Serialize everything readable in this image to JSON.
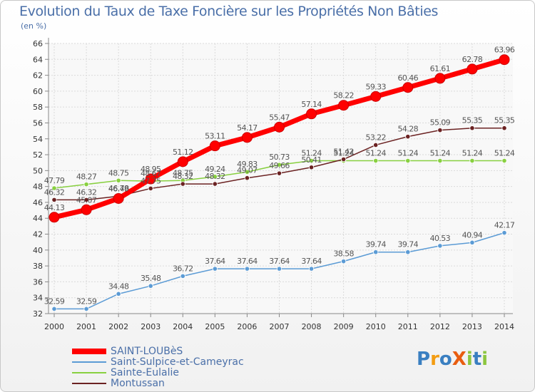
{
  "header": {
    "title": "Evolution du Taux de Taxe Foncière sur les Propriétés Non Bâties",
    "unit": "(en %)"
  },
  "logo": {
    "text": "ProXiti",
    "letter_colors": [
      "#3a7fc1",
      "#f39c12",
      "#3a7fc1",
      "#e85d10",
      "#8cc63f",
      "#3a7fc1",
      "#8cc63f"
    ]
  },
  "chart_data": {
    "type": "line",
    "title": "Evolution du Taux de Taxe Foncière sur les Propriétés Non Bâties",
    "ylabel": "(en %)",
    "xlabel": "",
    "ylim": [
      32,
      66
    ],
    "y_ticks": [
      32,
      34,
      36,
      38,
      40,
      42,
      44,
      46,
      48,
      50,
      52,
      54,
      56,
      58,
      60,
      62,
      64,
      66
    ],
    "grid": true,
    "legend_position": "bottom-left",
    "x": [
      "2000",
      "2001",
      "2002",
      "2003",
      "2004",
      "2005",
      "2006",
      "2007",
      "2008",
      "2009",
      "2010",
      "2011",
      "2012",
      "2013",
      "2014"
    ],
    "series": [
      {
        "name": "SAINT-LOUBèS",
        "color": "#ff0000",
        "values": [
          44.13,
          45.07,
          46.49,
          48.95,
          51.12,
          53.11,
          54.17,
          55.47,
          57.14,
          58.22,
          59.33,
          60.46,
          61.61,
          62.78,
          63.96
        ],
        "labels": [
          "44.13",
          "45.07",
          "46.49",
          "48.95",
          "51.12",
          "53.11",
          "54.17",
          "55.47",
          "57.14",
          "58.22",
          "59.33",
          "60.46",
          "61.61",
          "62.78",
          "63.96"
        ]
      },
      {
        "name": "Saint-Sulpice-et-Cameyrac",
        "color": "#5b9bd5",
        "values": [
          32.59,
          32.59,
          34.48,
          35.48,
          36.72,
          37.64,
          37.64,
          37.64,
          37.64,
          38.58,
          39.74,
          39.74,
          40.53,
          40.94,
          42.17
        ],
        "labels": [
          "32.59",
          "32.59",
          "34.48",
          "35.48",
          "36.72",
          "37.64",
          "37.64",
          "37.64",
          "37.64",
          "38.58",
          "39.74",
          "39.74",
          "40.53",
          "40.94",
          "42.17"
        ]
      },
      {
        "name": "Sainte-Eulalie",
        "color": "#88d040",
        "values": [
          47.79,
          48.27,
          48.75,
          48.67,
          48.75,
          49.24,
          49.83,
          50.73,
          51.24,
          51.24,
          51.24,
          51.24,
          51.24,
          51.24,
          51.24
        ],
        "labels": [
          "47.79",
          "48.27",
          "48.75",
          "48.67",
          "48.75",
          "49.24",
          "49.83",
          "50.73",
          "51.24",
          "51.24",
          "51.24",
          "51.24",
          "51.24",
          "51.24",
          "51.24"
        ]
      },
      {
        "name": "Montussan",
        "color": "#6b2222",
        "values": [
          46.32,
          46.32,
          46.78,
          47.75,
          48.32,
          48.32,
          49.07,
          49.66,
          50.41,
          51.42,
          53.22,
          54.28,
          55.09,
          55.35,
          55.35
        ],
        "labels": [
          "46.32",
          "46.32",
          "46.78",
          "47.75",
          "48.32",
          "48.32",
          "49.07",
          "49.66",
          "50.41",
          "51.42",
          "53.22",
          "54.28",
          "55.09",
          "55.35",
          "55.35"
        ]
      }
    ]
  }
}
